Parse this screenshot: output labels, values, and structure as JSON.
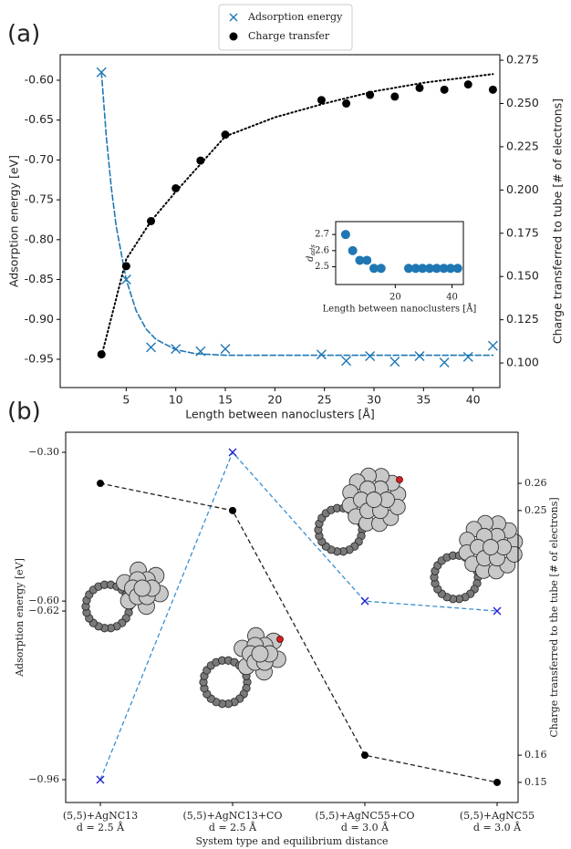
{
  "chart_data": [
    {
      "type": "scatter",
      "panel_label": "(a)",
      "xlabel": "Length between nanoclusters [Å]",
      "ylabel": "Adsorption energy [eV]",
      "y2label": "Charge transferred to tube [# of electrons]",
      "xlim": [
        -1.66,
        42.7
      ],
      "xticks": [
        5,
        10,
        15,
        20,
        25,
        30,
        35,
        40
      ],
      "ylim": [
        -0.9855,
        -0.568
      ],
      "yticks": [
        {
          "value": -0.95,
          "label": "-0.95"
        },
        {
          "value": -0.9,
          "label": "-0.90"
        },
        {
          "value": -0.85,
          "label": "-0.85"
        },
        {
          "value": -0.8,
          "label": "-0.80"
        },
        {
          "value": -0.75,
          "label": "-0.75"
        },
        {
          "value": -0.7,
          "label": "-0.70"
        },
        {
          "value": -0.65,
          "label": "-0.65"
        },
        {
          "value": -0.6,
          "label": "-0.60"
        }
      ],
      "y2lim": [
        0.0858,
        0.2782
      ],
      "y2ticks": [
        {
          "value": 0.1,
          "label": "0.100"
        },
        0.125,
        {
          "value": 0.15,
          "label": "0.150"
        },
        0.175,
        {
          "value": 0.2,
          "label": "0.200"
        },
        0.225,
        {
          "value": 0.25,
          "label": "0.250"
        },
        0.275
      ],
      "legend": "upper center",
      "series": [
        {
          "name": "Adsorption energy",
          "color": "#1f77b4",
          "marker": "x",
          "x": [
            2.5,
            5,
            7.5,
            10,
            12.5,
            15,
            24.7,
            27.2,
            29.6,
            32.1,
            34.6,
            37.1,
            39.5,
            42
          ],
          "values": [
            -0.59,
            -0.85,
            -0.935,
            -0.937,
            -0.94,
            -0.937,
            -0.944,
            -0.952,
            -0.946,
            -0.953,
            -0.946,
            -0.954,
            -0.947,
            -0.933
          ],
          "fit": {
            "style": "dashed",
            "x": [
              2.5,
              3,
              3.5,
              4,
              5,
              6,
              7,
              8,
              10,
              12,
              15,
              20,
              30,
              42
            ],
            "values": [
              -0.59,
              -0.672,
              -0.735,
              -0.784,
              -0.85,
              -0.889,
              -0.912,
              -0.925,
              -0.938,
              -0.943,
              -0.945,
              -0.945,
              -0.945,
              -0.945
            ]
          }
        },
        {
          "name": "Charge transfer",
          "color": "#000000",
          "marker": "o",
          "axis": "y2",
          "x": [
            2.5,
            5,
            7.5,
            10,
            12.5,
            15,
            24.7,
            27.2,
            29.6,
            32.1,
            34.6,
            37.1,
            39.5,
            42
          ],
          "values": [
            0.105,
            0.156,
            0.182,
            0.201,
            0.217,
            0.232,
            0.252,
            0.25,
            0.255,
            0.254,
            0.259,
            0.258,
            0.261,
            0.258
          ],
          "fit": {
            "style": "dotted",
            "x": [
              2.5,
              3,
              5,
              7.5,
              10,
              15,
              20,
              25,
              30,
              35,
              42
            ],
            "values": [
              0.104,
              0.115,
              0.16,
              0.182,
              0.199,
              0.231,
              0.242,
              0.25,
              0.257,
              0.262,
              0.267
            ]
          }
        }
      ]
    },
    {
      "type": "scatter",
      "xlabel": "Length between nanoclusters [Å]",
      "ylabel": {
        "symbol": "d",
        "subscript": "ads"
      },
      "xlim": [
        -1,
        44
      ],
      "xticks": [
        20,
        40
      ],
      "ylim": [
        2.39,
        2.78
      ],
      "yticks": [
        2.5,
        2.6,
        2.7
      ],
      "series": [
        {
          "color": "#1f77b4",
          "marker": "o",
          "x": [
            2.5,
            5,
            7.5,
            10,
            12.5,
            15,
            24.7,
            27.2,
            29.6,
            32.1,
            34.6,
            37.1,
            39.5,
            42
          ],
          "values": [
            2.7,
            2.6,
            2.54,
            2.54,
            2.49,
            2.49,
            2.49,
            2.49,
            2.49,
            2.49,
            2.49,
            2.49,
            2.49,
            2.49
          ]
        }
      ]
    },
    {
      "type": "line",
      "panel_label": "(b)",
      "categories": [
        "(5,5)+AgNC13",
        "(5,5)+AgNC13+CO",
        "(5,5)+AgNC55+CO",
        "(5,5)+AgNC55"
      ],
      "category_sublabels": [
        "d = 2.5 Å",
        "d = 2.5 Å",
        "d = 3.0 Å",
        "d = 3.0 Å"
      ],
      "xlabel": "System type and equilibrium distance",
      "ylabel": "Adsorption energy [eV]",
      "y2label": "Charge transferred to the tube [# of electrons]",
      "ylim": [
        -1.006,
        -0.2596
      ],
      "yticks": [
        {
          "value": -0.96,
          "label": "−0.96"
        },
        {
          "value": -0.62,
          "label": "−0.62"
        },
        {
          "value": -0.6,
          "label": "−0.60"
        },
        {
          "value": -0.3,
          "label": "−0.30"
        }
      ],
      "y2lim": [
        0.1426,
        0.2788
      ],
      "y2ticks": [
        0.15,
        0.16,
        0.25,
        0.26
      ],
      "series": [
        {
          "color": "#3a8fd0",
          "marker_color": "#2020d0",
          "marker": "x",
          "values": [
            -0.96,
            -0.3,
            -0.6,
            -0.62
          ]
        },
        {
          "color": "#222222",
          "marker_color": "#000000",
          "marker": "o",
          "axis": "y2",
          "values": [
            0.26,
            0.25,
            0.16,
            0.15
          ]
        }
      ]
    }
  ]
}
